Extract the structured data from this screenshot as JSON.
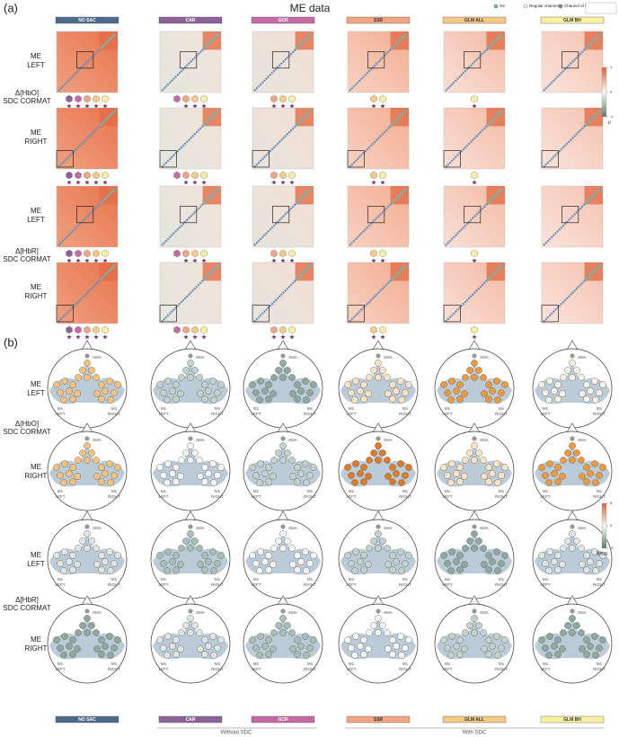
{
  "panel_a": {
    "label": "(a)",
    "title": "ME data",
    "legend": [
      "SS",
      "Regular channel",
      "Channel of interest"
    ],
    "colorbar": {
      "ticks": [
        1,
        0,
        -1
      ],
      "label": "ρ"
    }
  },
  "methods": [
    "NO SAC",
    "CAR",
    "GCR",
    "SSR",
    "GLM ALL",
    "GLM BH"
  ],
  "method_colors": [
    "#4d6a8a",
    "#8b6299",
    "#c46ba6",
    "#f2a583",
    "#f5ca85",
    "#f8f1a3"
  ],
  "conditions": [
    [
      "ME",
      "LEFT"
    ],
    [
      "ME",
      "RIGHT"
    ]
  ],
  "chromophores": [
    [
      "Δ[HbO]",
      "SDC CORMAT"
    ],
    [
      "Δ[HbR]",
      "SDC CORMAT"
    ]
  ],
  "panel_b": {
    "label": "(b)",
    "colorbar": {
      "ticks": [
        5,
        0,
        -5
      ],
      "label": "Betas"
    },
    "regions": {
      "sma": "SMA",
      "m1_left": [
        "M1",
        "LEFT"
      ],
      "m1_right": [
        "M1",
        "RIGHT"
      ]
    }
  },
  "groups": [
    "Without SDC",
    "With SDC"
  ]
}
